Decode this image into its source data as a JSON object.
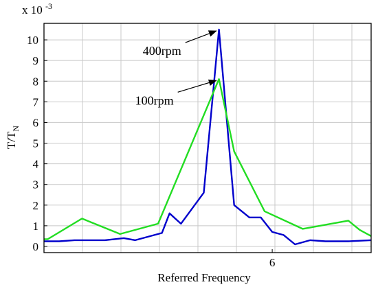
{
  "chart_data": {
    "type": "line",
    "title": "",
    "xlabel": "Referred Frequency",
    "ylabel_main": "T/T",
    "ylabel_sub": "N",
    "y_scale_prefix": "x 10",
    "y_scale_exponent": "-3",
    "xlim": [
      0,
      8.6
    ],
    "ylim": [
      -0.3,
      10.8
    ],
    "x_tick_labels": [
      {
        "value": 6,
        "label": "6"
      }
    ],
    "y_ticks": [
      0,
      1,
      2,
      3,
      4,
      5,
      6,
      7,
      8,
      9,
      10
    ],
    "grid": true,
    "legend": "none",
    "series": [
      {
        "color": "#0000cc",
        "points": [
          [
            0.0,
            0.25
          ],
          [
            0.4,
            0.25
          ],
          [
            0.8,
            0.3
          ],
          [
            1.6,
            0.3
          ],
          [
            2.1,
            0.4
          ],
          [
            2.4,
            0.3
          ],
          [
            3.1,
            0.65
          ],
          [
            3.3,
            1.6
          ],
          [
            3.6,
            1.1
          ],
          [
            4.2,
            2.6
          ],
          [
            4.6,
            10.5
          ],
          [
            5.0,
            2.0
          ],
          [
            5.4,
            1.4
          ],
          [
            5.7,
            1.4
          ],
          [
            6.0,
            0.7
          ],
          [
            6.3,
            0.55
          ],
          [
            6.6,
            0.1
          ],
          [
            7.0,
            0.3
          ],
          [
            7.4,
            0.25
          ],
          [
            8.0,
            0.25
          ],
          [
            8.6,
            0.3
          ]
        ]
      },
      {
        "color": "#22dd22",
        "points": [
          [
            0.0,
            0.35
          ],
          [
            0.1,
            0.35
          ],
          [
            1.0,
            1.35
          ],
          [
            2.0,
            0.6
          ],
          [
            3.0,
            1.1
          ],
          [
            4.6,
            8.1
          ],
          [
            5.0,
            4.6
          ],
          [
            5.8,
            1.7
          ],
          [
            6.8,
            0.85
          ],
          [
            8.0,
            1.25
          ],
          [
            8.3,
            0.8
          ],
          [
            8.6,
            0.5
          ]
        ]
      }
    ],
    "annotations": [
      {
        "text": "400rpm",
        "x": 3.5,
        "y": 9.6,
        "arrow_to": [
          4.6,
          10.5
        ]
      },
      {
        "text": "100rpm",
        "x": 3.3,
        "y": 7.2,
        "arrow_to": [
          4.6,
          8.1
        ]
      }
    ]
  }
}
